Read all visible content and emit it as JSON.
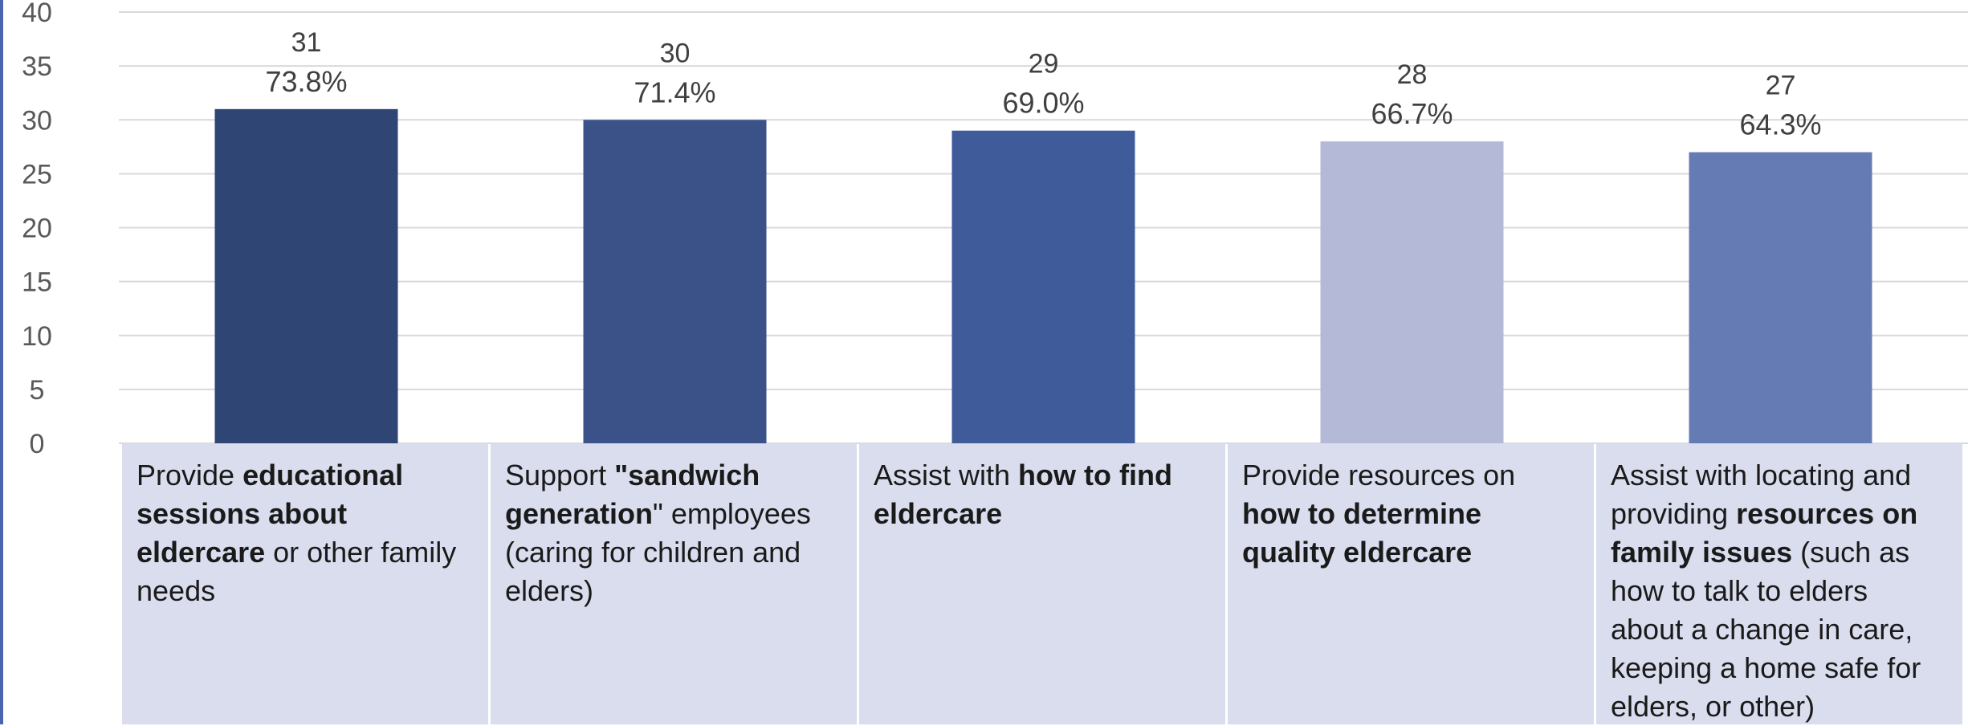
{
  "chart_data": {
    "type": "bar",
    "ylim": [
      0,
      40
    ],
    "yticks": [
      "0",
      "5",
      "10",
      "15",
      "20",
      "25",
      "30",
      "35",
      "40"
    ],
    "grid": true,
    "categories": [
      [
        {
          "t": "Provide ",
          "b": false
        },
        {
          "t": "educational sessions about eldercare",
          "b": true
        },
        {
          "t": " or other family needs",
          "b": false
        }
      ],
      [
        {
          "t": "Support ",
          "b": false
        },
        {
          "t": "\"sandwich generation",
          "b": true
        },
        {
          "t": "\" employees (caring for children and elders)",
          "b": false
        }
      ],
      [
        {
          "t": "Assist with ",
          "b": false
        },
        {
          "t": "how to find eldercare",
          "b": true
        }
      ],
      [
        {
          "t": "Provide resources on ",
          "b": false
        },
        {
          "t": "how to determine quality eldercare",
          "b": true
        }
      ],
      [
        {
          "t": "Assist with locating and providing ",
          "b": false
        },
        {
          "t": "resources on family issues",
          "b": true
        },
        {
          "t": " (such as how to talk to elders about a change in care, keeping a home safe for elders, or other)",
          "b": false
        }
      ]
    ],
    "values": [
      31,
      30,
      29,
      28,
      27
    ],
    "value_labels": [
      "31",
      "30",
      "29",
      "28",
      "27"
    ],
    "percent_labels": [
      "73.8%",
      "71.4%",
      "69.0%",
      "66.7%",
      "64.3%"
    ],
    "colors": [
      "#2f4574",
      "#3a5288",
      "#3f5b9a",
      "#b3b9d6",
      "#647bb3"
    ],
    "category_bg": "#d9ddee"
  }
}
